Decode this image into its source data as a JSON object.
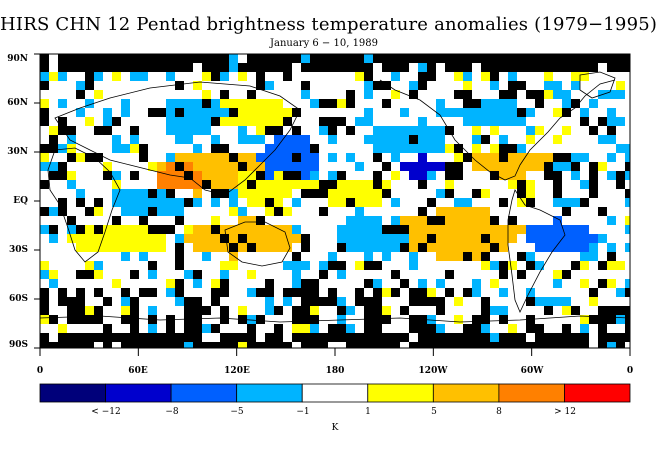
{
  "title": "HIRS CHN 12 Pentad brightness temperature anomalies (1979−1995)",
  "subtitle": "January 6 − 10, 1989",
  "lat_labels": [
    "90N",
    "60N",
    "30N",
    "EQ",
    "30S",
    "60S",
    "90S"
  ],
  "lon_labels": [
    "0",
    "60E",
    "120E",
    "180",
    "120W",
    "60W",
    "0"
  ],
  "colorbar": {
    "colors": [
      "#00007a",
      "#0000cd",
      "#0060ff",
      "#00b4ff",
      "#ffffff",
      "#ffff00",
      "#ffc000",
      "#ff8000",
      "#ff0000"
    ],
    "labels": [
      "< −12",
      "−8",
      "−5",
      "−1",
      "1",
      "5",
      "8",
      "> 12"
    ],
    "unit": "K"
  },
  "colors": {
    "missing": "#000000",
    "coast": "#000000",
    "palette": {
      "white": "#ffffff",
      "cyan": "#00b4ff",
      "blue": "#0060ff",
      "navy": "#0000cd",
      "yellow": "#ffff00",
      "gold": "#ffc000",
      "orange": "#ff8000"
    }
  }
}
